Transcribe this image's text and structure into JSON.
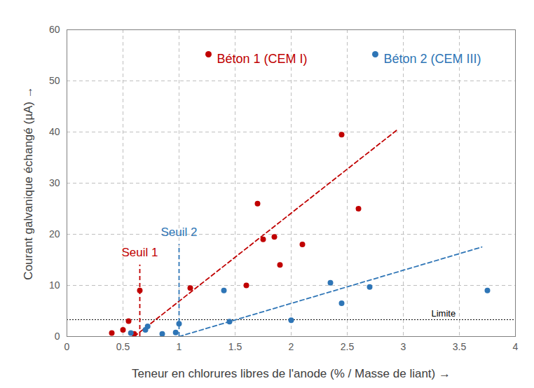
{
  "chart_data": {
    "type": "scatter",
    "x_label": "Teneur en chlorures libres de l'anode (% / Masse de liant)",
    "y_label": "Courant galvanique échangé (µA)",
    "xlim": [
      0,
      4
    ],
    "xticks": [
      0,
      0.5,
      1,
      1.5,
      2,
      2.5,
      3,
      3.5,
      4
    ],
    "ylim": [
      0,
      60
    ],
    "yticks": [
      0,
      10,
      20,
      30,
      40,
      50,
      60
    ],
    "grid": true,
    "legend": "top",
    "series": [
      {
        "name": "Béton 1 (CEM I)",
        "color": "#c00000",
        "marker": "circle",
        "x": [
          0.4,
          0.5,
          0.55,
          0.6,
          0.65,
          1.1,
          1.6,
          1.7,
          1.75,
          1.85,
          1.9,
          2.1,
          2.45,
          2.6
        ],
        "values": [
          0.7,
          1.3,
          3,
          0.5,
          9,
          9.5,
          10,
          26,
          19,
          19.5,
          14,
          18,
          39.5,
          25
        ]
      },
      {
        "name": "Béton 2 (CEM III)",
        "color": "#2e75b6",
        "marker": "circle",
        "x": [
          0.57,
          0.7,
          0.72,
          0.85,
          0.97,
          1.0,
          1.4,
          1.45,
          2.0,
          2.35,
          2.45,
          2.7,
          3.75
        ],
        "values": [
          0.7,
          1.3,
          2,
          0.5,
          0.8,
          2.5,
          9,
          2.9,
          3.2,
          10.5,
          6.5,
          9.7,
          9
        ]
      }
    ],
    "trend_lines": [
      {
        "color": "#c00000",
        "line_style": "dashed",
        "x": [
          0.6,
          2.95
        ],
        "values": [
          0,
          40.5
        ]
      },
      {
        "color": "#2e75b6",
        "line_style": "dashed",
        "x": [
          1.0,
          3.7
        ],
        "values": [
          0,
          17.5
        ]
      }
    ],
    "thresholds": [
      {
        "label": "Seuil 1",
        "color": "#c00000",
        "line_style": "dashed",
        "x": 0.65,
        "y_range": [
          0,
          14
        ]
      },
      {
        "label": "Seuil 2",
        "color": "#2e75b6",
        "line_style": "dashed",
        "x": 1.0,
        "y_range": [
          0,
          18
        ]
      }
    ],
    "limit": {
      "label": "Limite",
      "color": "#000000",
      "line_style": "dotted",
      "y": 3.3
    }
  }
}
